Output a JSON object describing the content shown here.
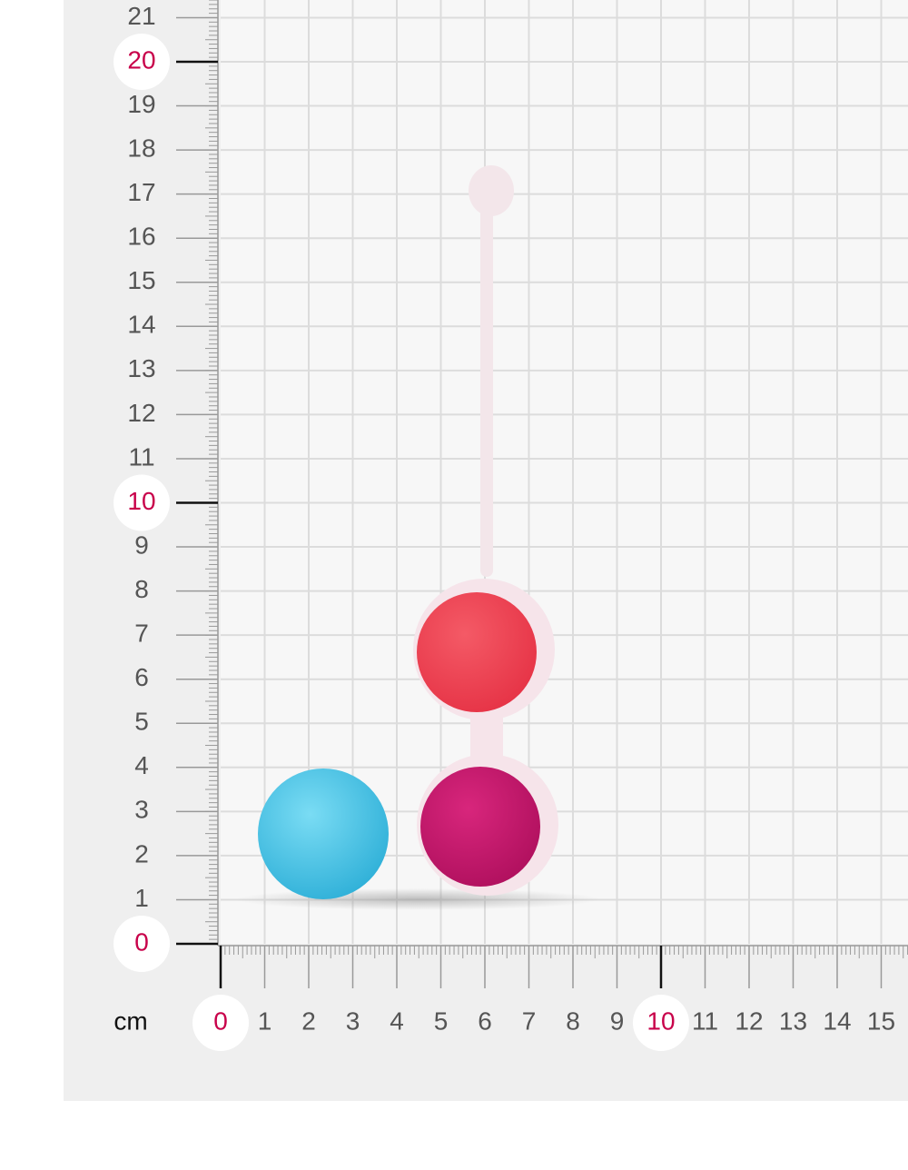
{
  "ruler": {
    "unit": "cm",
    "x_labels": [
      0,
      1,
      2,
      3,
      4,
      5,
      6,
      7,
      8,
      9,
      10,
      11,
      12,
      13,
      14,
      15
    ],
    "y_labels": [
      0,
      1,
      2,
      3,
      4,
      5,
      6,
      7,
      8,
      9,
      10,
      11,
      12,
      13,
      14,
      15,
      16,
      17,
      18,
      19,
      20,
      21
    ],
    "highlighted": [
      0,
      10,
      20
    ]
  }
}
